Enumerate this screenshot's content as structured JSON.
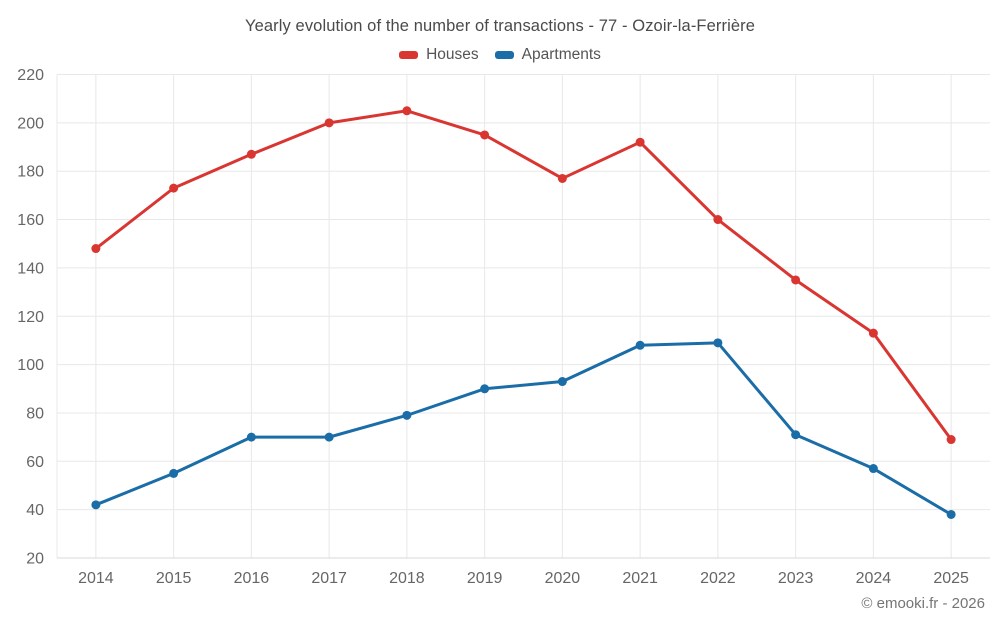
{
  "header": {
    "title": "Yearly evolution of the number of transactions - 77 - Ozoir-la-Ferrière"
  },
  "legend": {
    "items": [
      {
        "label": "Houses",
        "color": "#d93632"
      },
      {
        "label": "Apartments",
        "color": "#1a6da6"
      }
    ]
  },
  "footer": {
    "attribution": "© emooki.fr - 2026"
  },
  "chart_data": {
    "type": "line",
    "title": "Yearly evolution of the number of transactions - 77 - Ozoir-la-Ferrière",
    "categories": [
      "2014",
      "2015",
      "2016",
      "2017",
      "2018",
      "2019",
      "2020",
      "2021",
      "2022",
      "2023",
      "2024",
      "2025"
    ],
    "series": [
      {
        "name": "Houses",
        "color": "#d93632",
        "values": [
          148,
          173,
          187,
          200,
          205,
          195,
          177,
          192,
          160,
          135,
          113,
          69
        ]
      },
      {
        "name": "Apartments",
        "color": "#1a6da6",
        "values": [
          42,
          55,
          70,
          70,
          79,
          90,
          93,
          108,
          109,
          71,
          57,
          38
        ]
      }
    ],
    "xlabel": "",
    "ylabel": "",
    "ylim": [
      20,
      220
    ],
    "ytick_step": 20,
    "grid": true,
    "legend_position": "top",
    "colors": {
      "grid_line": "#e8e8e8",
      "axis_line": "#d8d8d8",
      "tick_label": "#666666"
    }
  }
}
